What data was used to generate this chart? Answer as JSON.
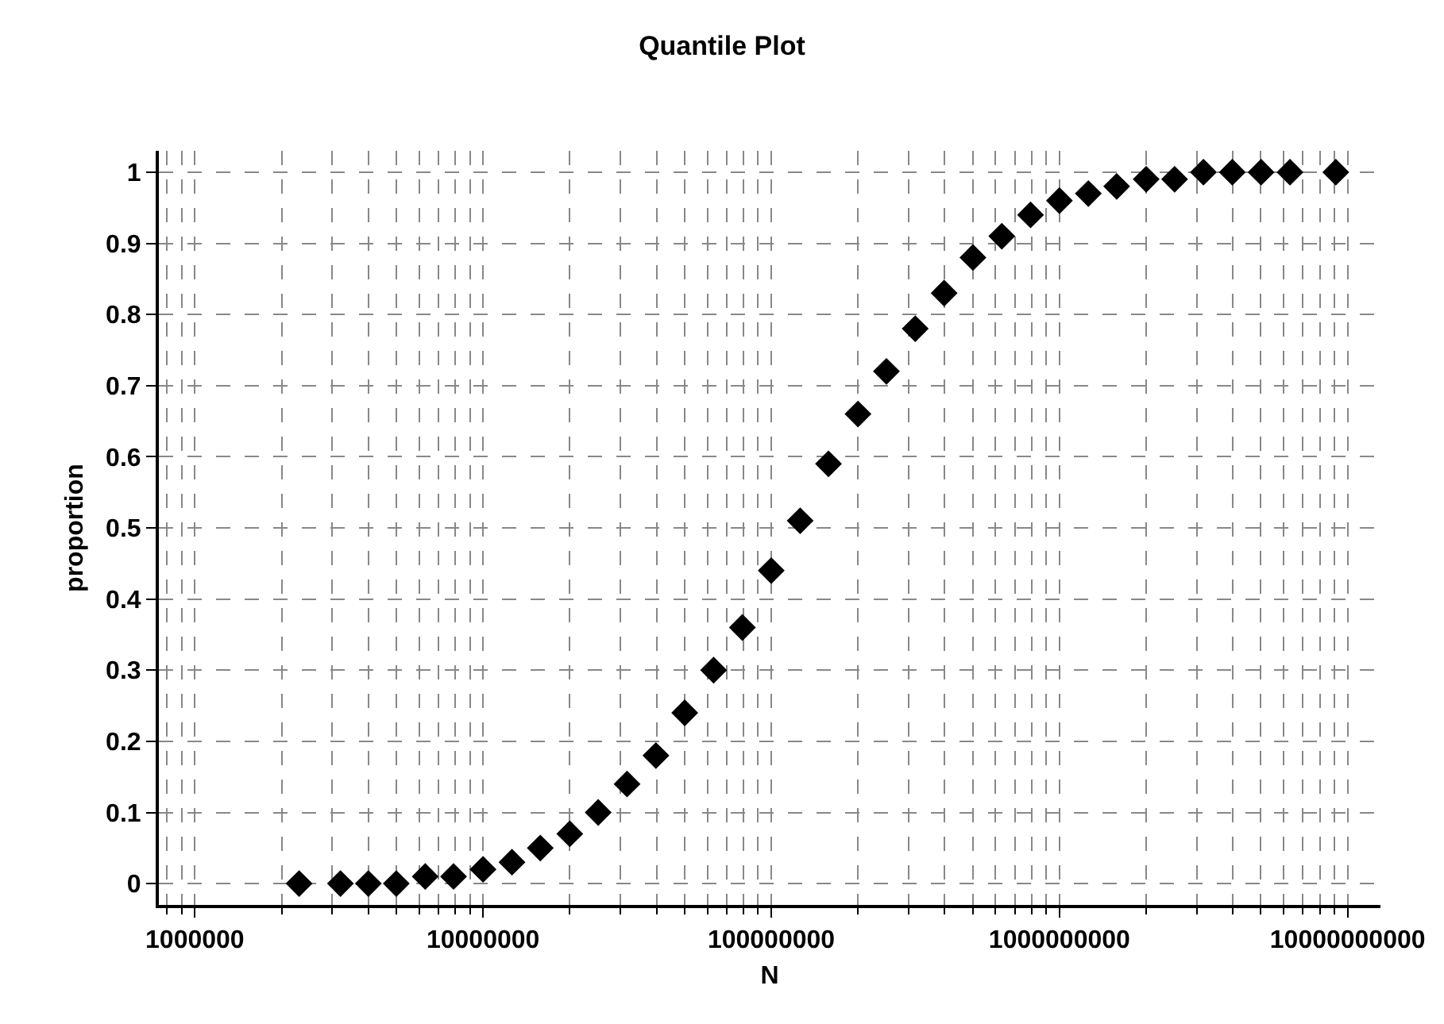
{
  "chart_data": {
    "type": "scatter",
    "title": "Quantile Plot",
    "xlabel": "N",
    "ylabel": "proportion",
    "x": [
      2300000,
      3200000,
      4000000,
      5000000,
      6300000,
      7900000,
      10000000,
      12600000,
      15800000,
      20000000,
      25100000,
      31600000,
      39800000,
      50100000,
      63100000,
      79400000,
      100000000,
      126000000,
      158000000,
      200000000,
      251000000,
      316000000,
      398000000,
      501000000,
      631000000,
      794000000,
      1000000000,
      1260000000,
      1580000000,
      2000000000,
      2510000000,
      3160000000,
      3980000000,
      5010000000,
      6310000000,
      9100000000
    ],
    "series": [
      {
        "color": "#000000",
        "values": [
          0,
          0,
          0,
          0,
          0.01,
          0.01,
          0.02,
          0.03,
          0.05,
          0.07,
          0.1,
          0.14,
          0.18,
          0.24,
          0.3,
          0.36,
          0.44,
          0.51,
          0.59,
          0.66,
          0.72,
          0.78,
          0.83,
          0.88,
          0.91,
          0.94,
          0.96,
          0.97,
          0.98,
          0.99,
          0.99,
          1,
          1,
          1,
          1,
          1
        ]
      }
    ],
    "log": "x",
    "xlim": [
      750000,
      13000000000
    ],
    "xticks": [
      1000000,
      10000000,
      100000000,
      1000000000,
      10000000000
    ],
    "ylim": [
      -0.03,
      1.03
    ],
    "yticks": [
      0,
      0.1,
      0.2,
      0.3,
      0.4,
      0.5,
      0.6,
      0.7,
      0.8,
      0.9,
      1
    ],
    "grid": true,
    "marker": "diamond"
  }
}
